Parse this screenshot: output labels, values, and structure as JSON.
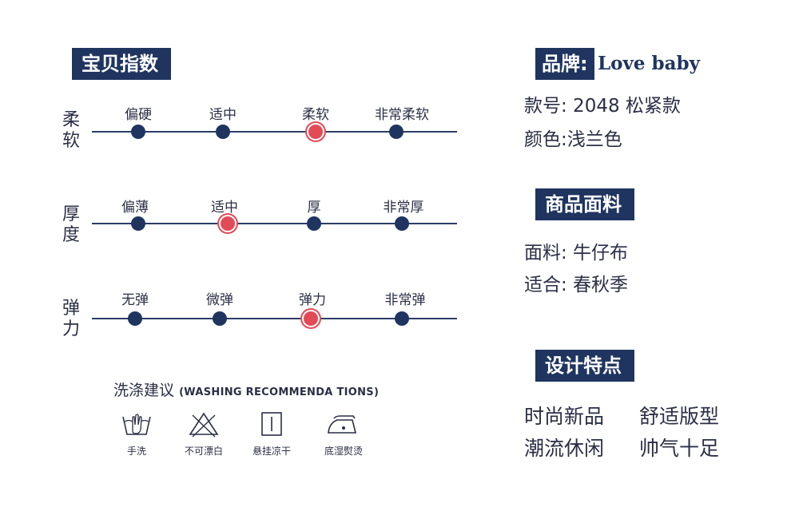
{
  "index_section": {
    "title": "宝贝指数"
  },
  "scales": [
    {
      "title": "柔软",
      "levels": [
        "偏硬",
        "适中",
        "柔软",
        "非常柔软"
      ],
      "selected": 2
    },
    {
      "title": "厚度",
      "levels": [
        "偏薄",
        "适中",
        "厚",
        "非常厚"
      ],
      "selected": 1
    },
    {
      "title": "弹力",
      "levels": [
        "无弹",
        "微弹",
        "弹力",
        "非常弹"
      ],
      "selected": 2
    }
  ],
  "washing": {
    "title": "洗涤建议",
    "title_en": "(WASHING RECOMMENDA TIONS)",
    "items": [
      {
        "label": "手洗",
        "icon": "hand-wash-icon"
      },
      {
        "label": "不可漂白",
        "icon": "no-bleach-icon"
      },
      {
        "label": "悬挂凉干",
        "icon": "hang-dry-icon"
      },
      {
        "label": "底湿熨烫",
        "icon": "iron-icon"
      }
    ]
  },
  "brand": {
    "label": "品牌:",
    "name": "Love baby"
  },
  "product": {
    "style_no": "款号: 2048 松紧款",
    "color": "颜色:浅兰色"
  },
  "fabric_section": {
    "title": "商品面料"
  },
  "fabric": {
    "material": "面料: 牛仔布",
    "season": "适合: 春秋季"
  },
  "design_section": {
    "title": "设计特点"
  },
  "features": [
    "时尚新品",
    "舒适版型",
    "潮流休闲",
    "帅气十足"
  ],
  "colors": {
    "navy": "#1f3560",
    "accent_red": "#e24a55",
    "text": "#2a2f45"
  }
}
